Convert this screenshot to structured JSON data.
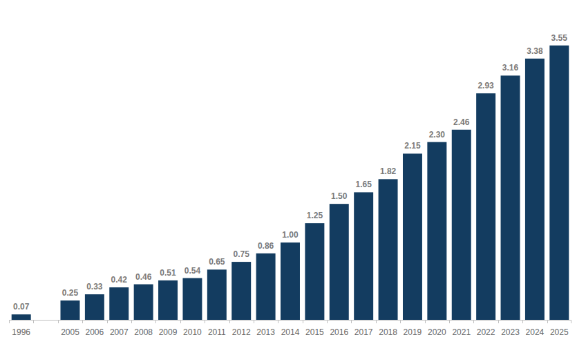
{
  "chart_data": {
    "type": "bar",
    "categories": [
      "1996",
      null,
      "2005",
      "2006",
      "2007",
      "2008",
      "2009",
      "2010",
      "2011",
      "2012",
      "2013",
      "2014",
      "2015",
      "2016",
      "2017",
      "2018",
      "2019",
      "2020",
      "2021",
      "2022",
      "2023",
      "2024",
      "2025"
    ],
    "values": [
      0.07,
      null,
      0.25,
      0.33,
      0.42,
      0.46,
      0.51,
      0.54,
      0.65,
      0.75,
      0.86,
      1.0,
      1.25,
      1.5,
      1.65,
      1.82,
      2.15,
      2.3,
      2.46,
      2.93,
      3.16,
      3.38,
      3.55
    ],
    "value_labels": [
      "0.07",
      null,
      "0.25",
      "0.33",
      "0.42",
      "0.46",
      "0.51",
      "0.54",
      "0.65",
      "0.75",
      "0.86",
      "1.00",
      "1.25",
      "1.50",
      "1.65",
      "1.82",
      "2.15",
      "2.30",
      "2.46",
      "2.93",
      "3.16",
      "3.38",
      "3.55"
    ],
    "color": "#133c60",
    "ylim": [
      0,
      3.7
    ],
    "grid": false,
    "data_labels": true,
    "tick_labels": "x"
  }
}
